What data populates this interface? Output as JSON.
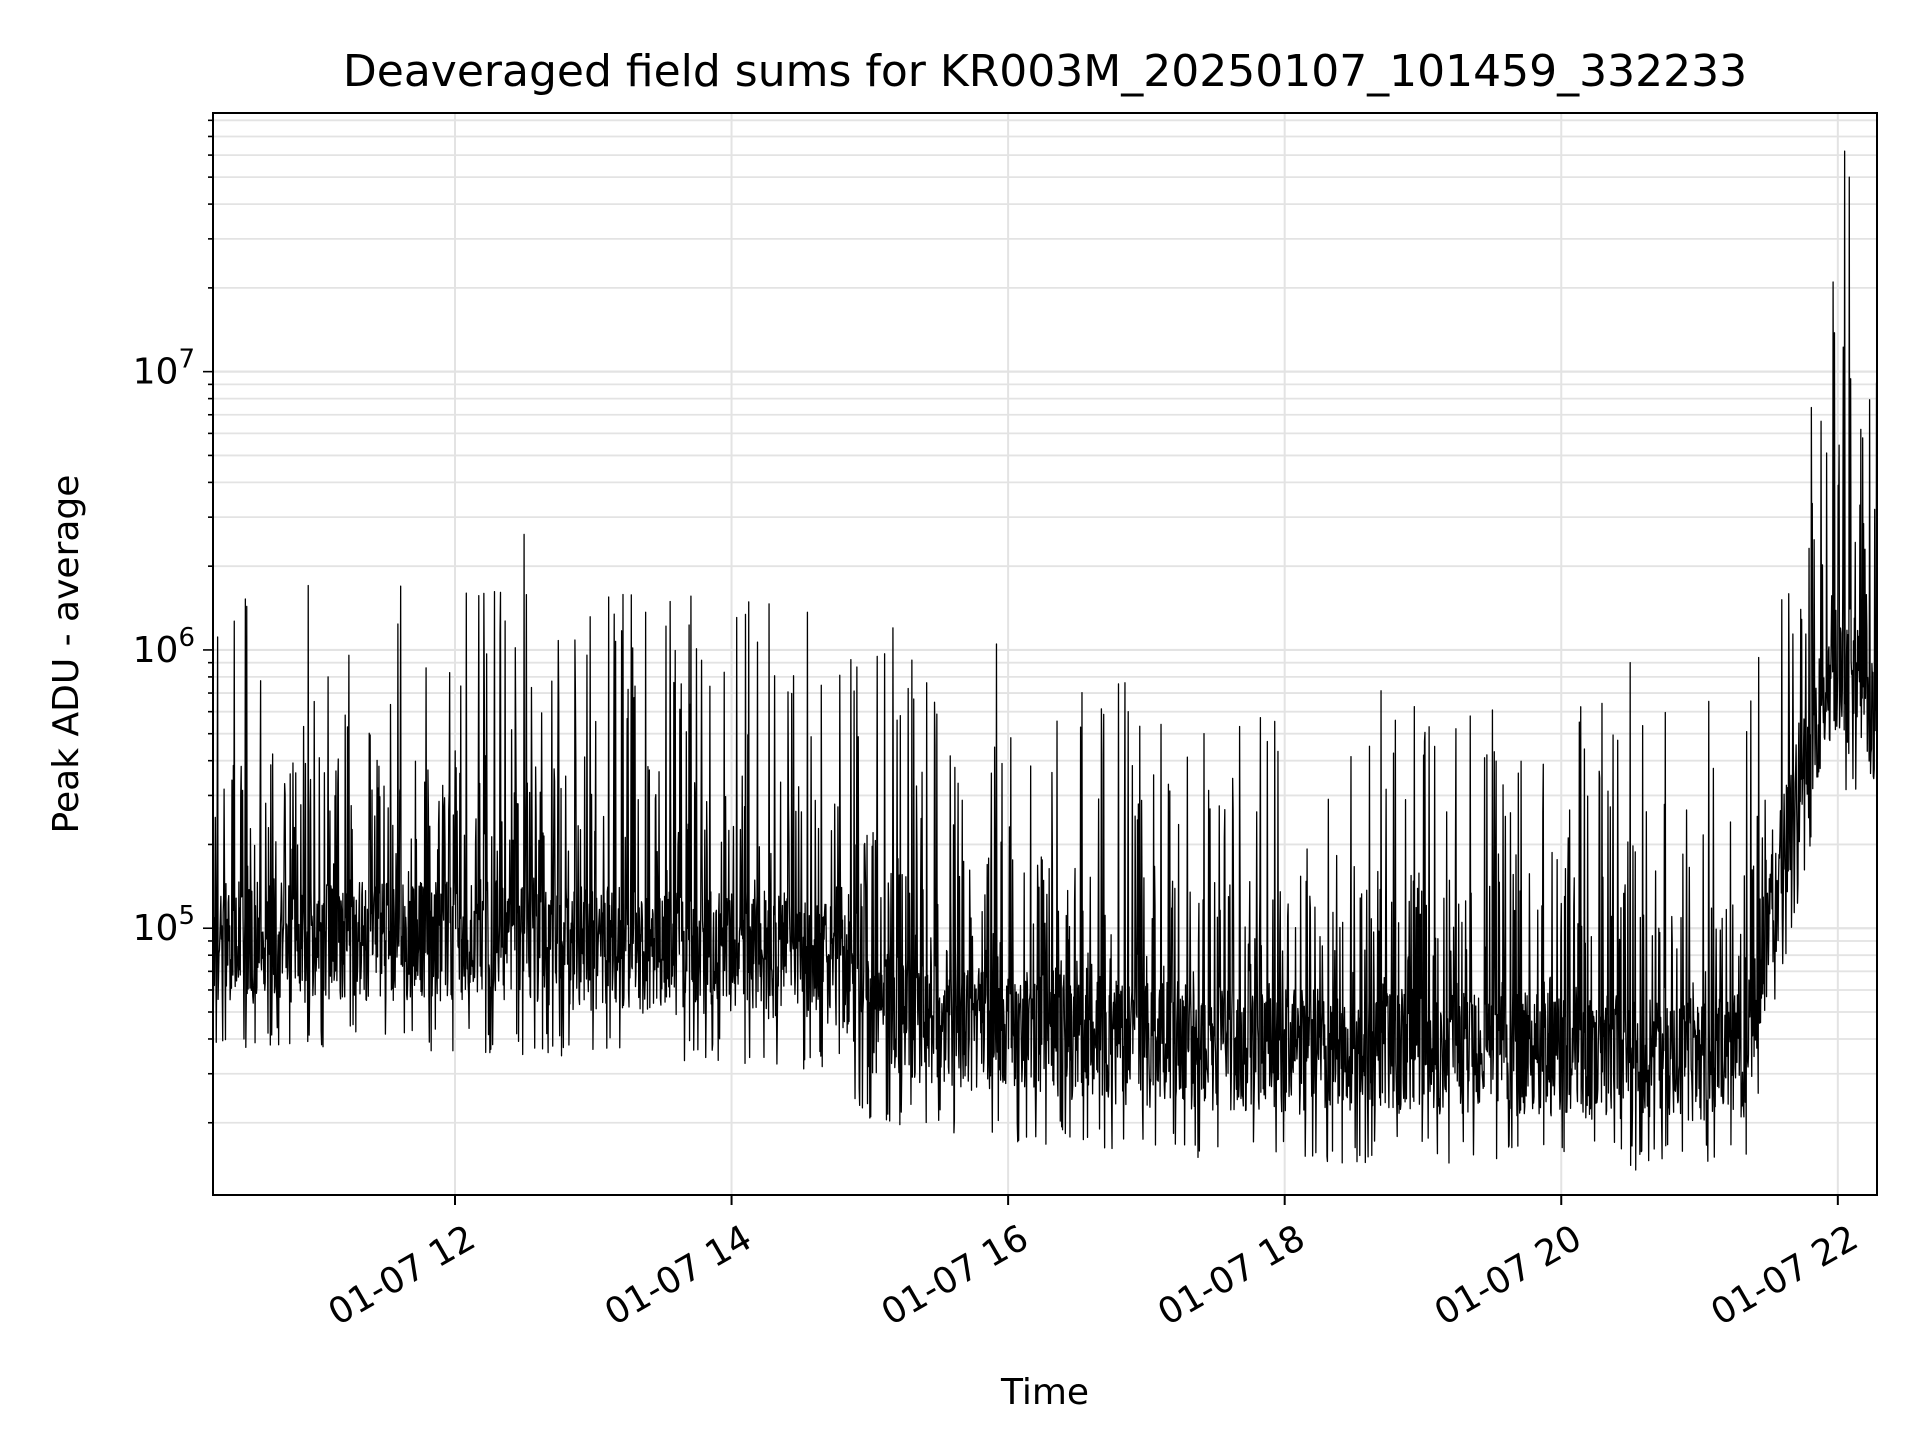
{
  "chart_data": {
    "type": "line",
    "title": "Deaveraged field sums for KR003M_20250107_101459_332233",
    "xlabel": "Time",
    "ylabel": "Peak ADU - average",
    "x_type": "datetime",
    "xlim": [
      "2025-01-07 10:15",
      "2025-01-07 22:17"
    ],
    "ylim": [
      11000,
      85000000
    ],
    "yscale": "log",
    "grid": true,
    "legend": "none",
    "line_color": "#000000",
    "grid_color": "#e3e3e3",
    "x_ticks": [
      {
        "value": "2025-01-07 12:00",
        "label": "01-07 12"
      },
      {
        "value": "2025-01-07 14:00",
        "label": "01-07 14"
      },
      {
        "value": "2025-01-07 16:00",
        "label": "01-07 16"
      },
      {
        "value": "2025-01-07 18:00",
        "label": "01-07 18"
      },
      {
        "value": "2025-01-07 20:00",
        "label": "01-07 20"
      },
      {
        "value": "2025-01-07 22:00",
        "label": "01-07 22"
      }
    ],
    "y_ticks": [
      {
        "value": 100000,
        "base": "10",
        "exp": "5"
      },
      {
        "value": 1000000,
        "base": "10",
        "exp": "6"
      },
      {
        "value": 10000000,
        "base": "10",
        "exp": "7"
      }
    ],
    "baseline": {
      "x": [
        "2025-01-07 10:15",
        "2025-01-07 11:00",
        "2025-01-07 12:00",
        "2025-01-07 13:00",
        "2025-01-07 14:00",
        "2025-01-07 14:45",
        "2025-01-07 15:00",
        "2025-01-07 15:30",
        "2025-01-07 16:00",
        "2025-01-07 16:30",
        "2025-01-07 17:00",
        "2025-01-07 18:00",
        "2025-01-07 19:00",
        "2025-01-07 20:00",
        "2025-01-07 21:00",
        "2025-01-07 21:20",
        "2025-01-07 21:30",
        "2025-01-07 21:40",
        "2025-01-07 21:50",
        "2025-01-07 22:00",
        "2025-01-07 22:05",
        "2025-01-07 22:10",
        "2025-01-07 22:17"
      ],
      "y": [
        90000,
        90000,
        90000,
        85000,
        80000,
        75000,
        50000,
        45000,
        42000,
        40000,
        38000,
        36000,
        36000,
        35000,
        33000,
        35000,
        100000,
        250000,
        500000,
        900000,
        700000,
        800000,
        500000
      ]
    },
    "peaks": {
      "x": [
        "2025-01-07 11:05",
        "2025-01-07 12:05",
        "2025-01-07 12:30",
        "2025-01-07 15:10",
        "2025-01-07 15:55",
        "2025-01-07 17:25",
        "2025-01-07 19:05",
        "2025-01-07 20:30",
        "2025-01-07 21:58",
        "2025-01-07 22:03",
        "2025-01-07 22:05",
        "2025-01-07 22:10",
        "2025-01-07 22:16"
      ],
      "y": [
        800000,
        1600000,
        2600000,
        1200000,
        1050000,
        500000,
        450000,
        900000,
        21000000,
        62000000,
        50000000,
        6200000,
        3200000
      ]
    }
  }
}
